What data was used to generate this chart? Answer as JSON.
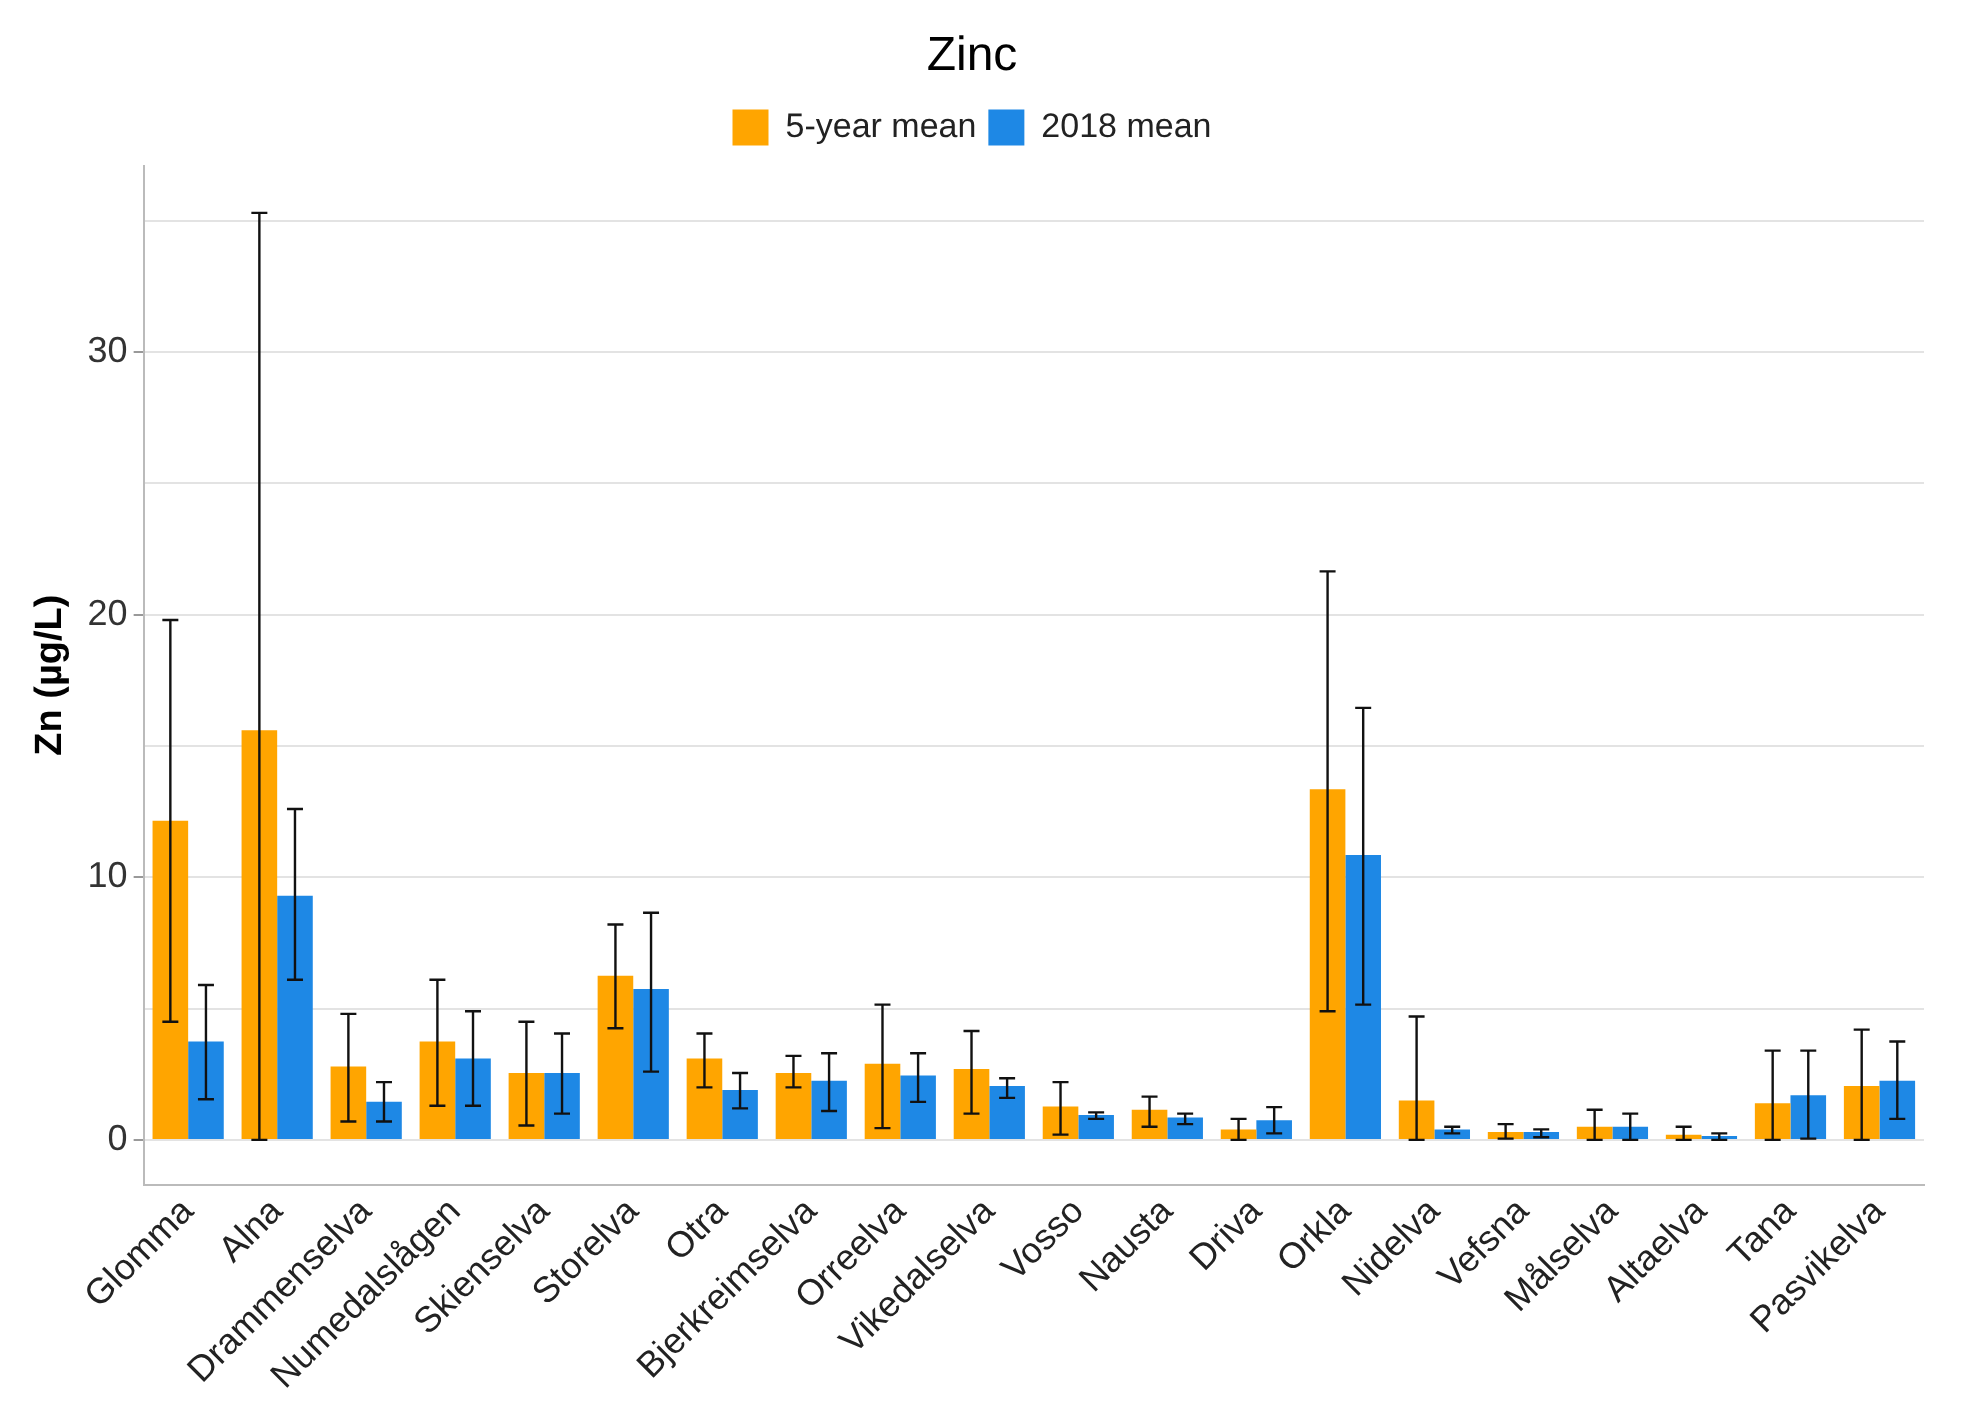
{
  "chart_data": {
    "type": "bar",
    "title": "Zinc",
    "ylabel": "Zn (µg/L)",
    "categories": [
      "Glomma",
      "Alna",
      "Drammenselva",
      "Numedalslågen",
      "Skienselva",
      "Storelva",
      "Otra",
      "Bjerkreimselva",
      "Orreelva",
      "Vikedalselva",
      "Vosso",
      "Nausta",
      "Driva",
      "Orkla",
      "Nidelva",
      "Vefsna",
      "Målselva",
      "Altaelva",
      "Tana",
      "Pasvikelva"
    ],
    "series": [
      {
        "name": "5-year mean",
        "color": "#ffa500",
        "values": [
          12.15,
          15.6,
          2.8,
          3.75,
          2.55,
          6.25,
          3.1,
          2.55,
          2.9,
          2.7,
          1.27,
          1.15,
          0.4,
          13.35,
          1.5,
          0.3,
          0.5,
          0.2,
          1.4,
          2.05
        ],
        "errors": [
          [
            4.5,
            19.8
          ],
          [
            0,
            35.3
          ],
          [
            0.7,
            4.8
          ],
          [
            1.3,
            6.1
          ],
          [
            0.55,
            4.5
          ],
          [
            4.25,
            8.2
          ],
          [
            2.0,
            4.05
          ],
          [
            2.0,
            3.2
          ],
          [
            0.45,
            5.15
          ],
          [
            1.0,
            4.15
          ],
          [
            0.2,
            2.2
          ],
          [
            0.5,
            1.65
          ],
          [
            0,
            0.8
          ],
          [
            4.9,
            21.65
          ],
          [
            0,
            4.7
          ],
          [
            0.05,
            0.6
          ],
          [
            0,
            1.15
          ],
          [
            0,
            0.5
          ],
          [
            0,
            3.4
          ],
          [
            0,
            4.2
          ]
        ]
      },
      {
        "name": "2018 mean",
        "color": "#1e88e5",
        "values": [
          3.75,
          9.3,
          1.45,
          3.1,
          2.55,
          5.75,
          1.9,
          2.25,
          2.45,
          2.05,
          0.95,
          0.85,
          0.75,
          10.85,
          0.4,
          0.3,
          0.5,
          0.15,
          1.7,
          2.25
        ],
        "errors": [
          [
            1.55,
            5.9
          ],
          [
            6.1,
            12.6
          ],
          [
            0.7,
            2.2
          ],
          [
            1.3,
            4.9
          ],
          [
            1.0,
            4.05
          ],
          [
            2.6,
            8.65
          ],
          [
            1.2,
            2.55
          ],
          [
            1.1,
            3.3
          ],
          [
            1.45,
            3.3
          ],
          [
            1.6,
            2.35
          ],
          [
            0.8,
            1.05
          ],
          [
            0.6,
            1.0
          ],
          [
            0.25,
            1.25
          ],
          [
            5.15,
            16.45
          ],
          [
            0.25,
            0.5
          ],
          [
            0.1,
            0.4
          ],
          [
            0,
            1.0
          ],
          [
            0,
            0.25
          ],
          [
            0.05,
            3.4
          ],
          [
            0.8,
            3.75
          ]
        ]
      }
    ],
    "ylim": [
      -1.7,
      37.1
    ],
    "yticks": [
      0,
      {
        "value": 5,
        "label": null
      },
      10,
      {
        "value": 15,
        "label": null
      },
      20,
      {
        "value": 25,
        "label": null
      },
      30,
      {
        "value": 35,
        "label": null
      }
    ],
    "grid": "y",
    "legend": "top"
  }
}
